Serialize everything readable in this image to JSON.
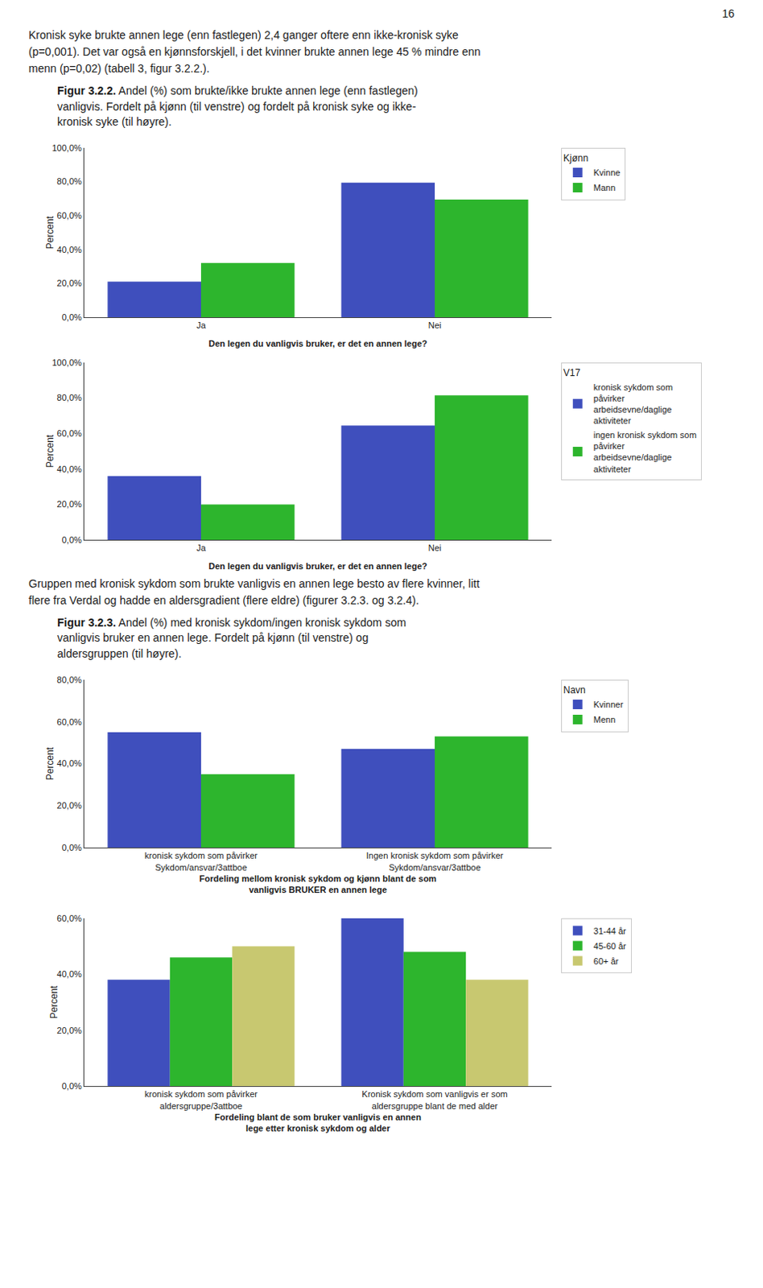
{
  "annotations": [
    "16",
    "Kronisk syke brukte annen lege (enn fastlegen) 2,4 ganger oftere enn ikke-kronisk syke\n(p=0,001). Det var også en kjønnsforskjell, i det kvinner brukte annen lege 45 % mindre enn\nmenn (p=0,02) (tabell 3, figur 3.2.2.).",
    "Figur 3.2.2.",
    " Andel (%) som brukte/ikke brukte annen lege (enn fastlegen)\nvanligvis. Fordelt på kjønn (til venstre) og fordelt på kronisk syke og ikke-\nkronisk syke (til høyre).",
    "Gruppen med kronisk sykdom som brukte vanligvis en annen lege besto av flere kvinner, litt\nflere fra Verdal og hadde en aldersgradient (flere eldre) (figurer 3.2.3. og 3.2.4).",
    "Figur 3.2.3.",
    " Andel (%) med kronisk sykdom/ingen kronisk sykdom som\nvanligvis bruker en annen lege. Fordelt på kjønn (til venstre) og\naldersgruppen (til høyre)."
  ],
  "chart_data": [
    {
      "type": "bar",
      "categories": [
        "Ja",
        "Nei"
      ],
      "series": [
        {
          "name": "Kvinne",
          "color": "#3f4fbd",
          "values": [
            21.0,
            79.5
          ]
        },
        {
          "name": "Mann",
          "color": "#2db52d",
          "values": [
            32.0,
            69.5
          ]
        }
      ],
      "ylabel": "Percent",
      "xlabel": "Den legen du vanligvis bruker, er det en annen lege?",
      "ylim": [
        0,
        100
      ],
      "yticks": [
        {
          "value": 0,
          "label": "0,0%"
        },
        {
          "value": 20,
          "label": "20,0%"
        },
        {
          "value": 40,
          "label": "40,0%"
        },
        {
          "value": 60,
          "label": "60,0%"
        },
        {
          "value": 80,
          "label": "80,0%"
        },
        {
          "value": 100,
          "label": "100,0%"
        }
      ],
      "legend_title": "Kjønn",
      "legend": "right",
      "grid": false
    },
    {
      "type": "bar",
      "categories": [
        "Ja",
        "Nei"
      ],
      "series": [
        {
          "name": "kronisk sykdom som\npåvirker\narbeidsevne/daglige\naktiviteter",
          "color": "#3f4fbd",
          "values": [
            36.0,
            64.5
          ]
        },
        {
          "name": "ingen kronisk sykdom som\npåvirker\narbeidsevne/daglige\naktiviteter",
          "color": "#2db52d",
          "values": [
            20.0,
            81.5
          ]
        }
      ],
      "ylabel": "Percent",
      "xlabel": "Den legen du vanligvis bruker, er det en annen lege?",
      "ylim": [
        0,
        100
      ],
      "yticks": [
        {
          "value": 0,
          "label": "0,0%"
        },
        {
          "value": 20,
          "label": "20,0%"
        },
        {
          "value": 40,
          "label": "40,0%"
        },
        {
          "value": 60,
          "label": "60,0%"
        },
        {
          "value": 80,
          "label": "80,0%"
        },
        {
          "value": 100,
          "label": "100,0%"
        }
      ],
      "legend_title": "V17",
      "legend": "right",
      "grid": false
    },
    {
      "type": "bar",
      "categories": [
        "kronisk sykdom som påvirker\nSykdom/ansvar/3attboe",
        "Ingen kronisk sykdom som påvirker\nSykdom/ansvar/3attboe"
      ],
      "series": [
        {
          "name": "Kvinner",
          "color": "#3f4fbd",
          "values": [
            55.0,
            47.0
          ]
        },
        {
          "name": "Menn",
          "color": "#2db52d",
          "values": [
            35.0,
            53.0
          ]
        }
      ],
      "ylabel": "Percent",
      "xlabel": "Fordeling mellom kronisk sykdom og kjønn blant de som\nvanligvis BRUKER en annen lege",
      "ylim": [
        0,
        80
      ],
      "yticks": [
        {
          "value": 0,
          "label": "0,0%"
        },
        {
          "value": 20,
          "label": "20,0%"
        },
        {
          "value": 40,
          "label": "40,0%"
        },
        {
          "value": 60,
          "label": "60,0%"
        },
        {
          "value": 80,
          "label": "80,0%"
        }
      ],
      "legend_title": "Navn",
      "legend": "right",
      "grid": false
    },
    {
      "type": "bar",
      "categories": [
        "kronisk sykdom som påvirker\naldersgruppe/3attboe",
        "Kronisk sykdom som vanligvis er som\naldersgruppe blant de med alder"
      ],
      "series": [
        {
          "name": "31-44 år",
          "color": "#3f4fbd",
          "values": [
            38.0,
            60.0
          ]
        },
        {
          "name": "45-60 år",
          "color": "#2db52d",
          "values": [
            46.0,
            48.0
          ]
        },
        {
          "name": "60+ år",
          "color": "#c8c870",
          "values": [
            50.0,
            38.0
          ]
        }
      ],
      "ylabel": "Percent",
      "xlabel": "Fordeling blant de som bruker vanligvis en annen\nlege etter kronisk sykdom og alder",
      "ylim": [
        0,
        60
      ],
      "yticks": [
        {
          "value": 0,
          "label": "0,0%"
        },
        {
          "value": 20,
          "label": "20,0%"
        },
        {
          "value": 40,
          "label": "40,0%"
        },
        {
          "value": 60,
          "label": "60,0%"
        }
      ],
      "legend": "right",
      "grid": false
    }
  ]
}
